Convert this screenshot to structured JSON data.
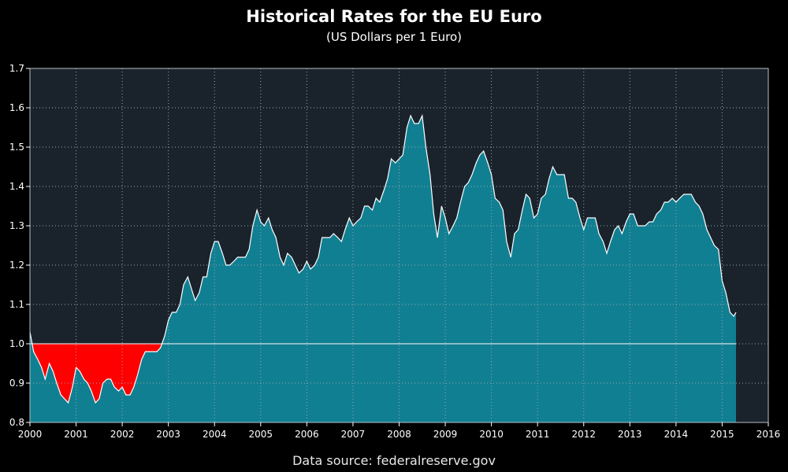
{
  "chart_data": {
    "type": "area",
    "title": "Historical Rates for the EU Euro",
    "subtitle": "(US Dollars per 1 Euro)",
    "source": "Data source: federalreserve.gov",
    "xlabel": "",
    "ylabel": "",
    "xlim": [
      2000,
      2016
    ],
    "ylim": [
      0.8,
      1.7
    ],
    "x_ticks": [
      "2000",
      "2001",
      "2002",
      "2003",
      "2004",
      "2005",
      "2006",
      "2007",
      "2008",
      "2009",
      "2010",
      "2011",
      "2012",
      "2013",
      "2014",
      "2015",
      "2016"
    ],
    "y_ticks": [
      "0.8",
      "0.9",
      "1.0",
      "1.1",
      "1.2",
      "1.3",
      "1.4",
      "1.5",
      "1.6",
      "1.7"
    ],
    "grid": true,
    "reference_line": 1.0,
    "colors": {
      "background": "#000000",
      "plot_background": "#1a232c",
      "area_above": "#117f92",
      "area_below": "#ff0000",
      "line": "#ffffff",
      "grid": "#9aa4ad"
    },
    "series": [
      {
        "x": [
          2000.0,
          2000.08,
          2000.17,
          2000.25,
          2000.33,
          2000.42,
          2000.5,
          2000.58,
          2000.67,
          2000.75,
          2000.83,
          2000.92,
          2001.0,
          2001.08,
          2001.17,
          2001.25,
          2001.33,
          2001.42,
          2001.5,
          2001.58,
          2001.67,
          2001.75,
          2001.83,
          2001.92,
          2002.0,
          2002.08,
          2002.17,
          2002.25,
          2002.33,
          2002.42,
          2002.5,
          2002.58,
          2002.67,
          2002.75,
          2002.83,
          2002.92,
          2003.0,
          2003.08,
          2003.17,
          2003.25,
          2003.33,
          2003.42,
          2003.5,
          2003.58,
          2003.67,
          2003.75,
          2003.83,
          2003.92,
          2004.0,
          2004.08,
          2004.17,
          2004.25,
          2004.33,
          2004.42,
          2004.5,
          2004.58,
          2004.67,
          2004.75,
          2004.83,
          2004.92,
          2005.0,
          2005.08,
          2005.17,
          2005.25,
          2005.33,
          2005.42,
          2005.5,
          2005.58,
          2005.67,
          2005.75,
          2005.83,
          2005.92,
          2006.0,
          2006.08,
          2006.17,
          2006.25,
          2006.33,
          2006.42,
          2006.5,
          2006.58,
          2006.67,
          2006.75,
          2006.83,
          2006.92,
          2007.0,
          2007.08,
          2007.17,
          2007.25,
          2007.33,
          2007.42,
          2007.5,
          2007.58,
          2007.67,
          2007.75,
          2007.83,
          2007.92,
          2008.0,
          2008.08,
          2008.17,
          2008.25,
          2008.33,
          2008.42,
          2008.5,
          2008.58,
          2008.67,
          2008.75,
          2008.83,
          2008.92,
          2009.0,
          2009.08,
          2009.17,
          2009.25,
          2009.33,
          2009.42,
          2009.5,
          2009.58,
          2009.67,
          2009.75,
          2009.83,
          2009.92,
          2010.0,
          2010.08,
          2010.17,
          2010.25,
          2010.33,
          2010.42,
          2010.5,
          2010.58,
          2010.67,
          2010.75,
          2010.83,
          2010.92,
          2011.0,
          2011.08,
          2011.17,
          2011.25,
          2011.33,
          2011.42,
          2011.5,
          2011.58,
          2011.67,
          2011.75,
          2011.83,
          2011.92,
          2012.0,
          2012.08,
          2012.17,
          2012.25,
          2012.33,
          2012.42,
          2012.5,
          2012.58,
          2012.67,
          2012.75,
          2012.83,
          2012.92,
          2013.0,
          2013.08,
          2013.17,
          2013.25,
          2013.33,
          2013.42,
          2013.5,
          2013.58,
          2013.67,
          2013.75,
          2013.83,
          2013.92,
          2014.0,
          2014.08,
          2014.17,
          2014.25,
          2014.33,
          2014.42,
          2014.5,
          2014.58,
          2014.67,
          2014.75,
          2014.83,
          2014.92,
          2015.0,
          2015.08,
          2015.17,
          2015.25,
          2015.3
        ],
        "y": [
          1.03,
          0.98,
          0.96,
          0.94,
          0.91,
          0.95,
          0.93,
          0.9,
          0.87,
          0.86,
          0.85,
          0.89,
          0.94,
          0.93,
          0.91,
          0.9,
          0.88,
          0.85,
          0.86,
          0.9,
          0.91,
          0.91,
          0.89,
          0.88,
          0.89,
          0.87,
          0.87,
          0.89,
          0.92,
          0.96,
          0.98,
          0.98,
          0.98,
          0.98,
          0.99,
          1.02,
          1.06,
          1.08,
          1.08,
          1.1,
          1.15,
          1.17,
          1.14,
          1.11,
          1.13,
          1.17,
          1.17,
          1.23,
          1.26,
          1.26,
          1.23,
          1.2,
          1.2,
          1.21,
          1.22,
          1.22,
          1.22,
          1.24,
          1.3,
          1.34,
          1.31,
          1.3,
          1.32,
          1.29,
          1.27,
          1.22,
          1.2,
          1.23,
          1.22,
          1.2,
          1.18,
          1.19,
          1.21,
          1.19,
          1.2,
          1.22,
          1.27,
          1.27,
          1.27,
          1.28,
          1.27,
          1.26,
          1.29,
          1.32,
          1.3,
          1.31,
          1.32,
          1.35,
          1.35,
          1.34,
          1.37,
          1.36,
          1.39,
          1.42,
          1.47,
          1.46,
          1.47,
          1.48,
          1.55,
          1.58,
          1.56,
          1.56,
          1.58,
          1.5,
          1.43,
          1.33,
          1.27,
          1.35,
          1.32,
          1.28,
          1.3,
          1.32,
          1.36,
          1.4,
          1.41,
          1.43,
          1.46,
          1.48,
          1.49,
          1.46,
          1.43,
          1.37,
          1.36,
          1.34,
          1.26,
          1.22,
          1.28,
          1.29,
          1.34,
          1.38,
          1.37,
          1.32,
          1.33,
          1.37,
          1.38,
          1.42,
          1.45,
          1.43,
          1.43,
          1.43,
          1.37,
          1.37,
          1.36,
          1.32,
          1.29,
          1.32,
          1.32,
          1.32,
          1.28,
          1.26,
          1.23,
          1.26,
          1.29,
          1.3,
          1.28,
          1.31,
          1.33,
          1.33,
          1.3,
          1.3,
          1.3,
          1.31,
          1.31,
          1.33,
          1.34,
          1.36,
          1.36,
          1.37,
          1.36,
          1.37,
          1.38,
          1.38,
          1.38,
          1.36,
          1.35,
          1.33,
          1.29,
          1.27,
          1.25,
          1.24,
          1.16,
          1.13,
          1.08,
          1.07,
          1.08
        ]
      }
    ]
  }
}
